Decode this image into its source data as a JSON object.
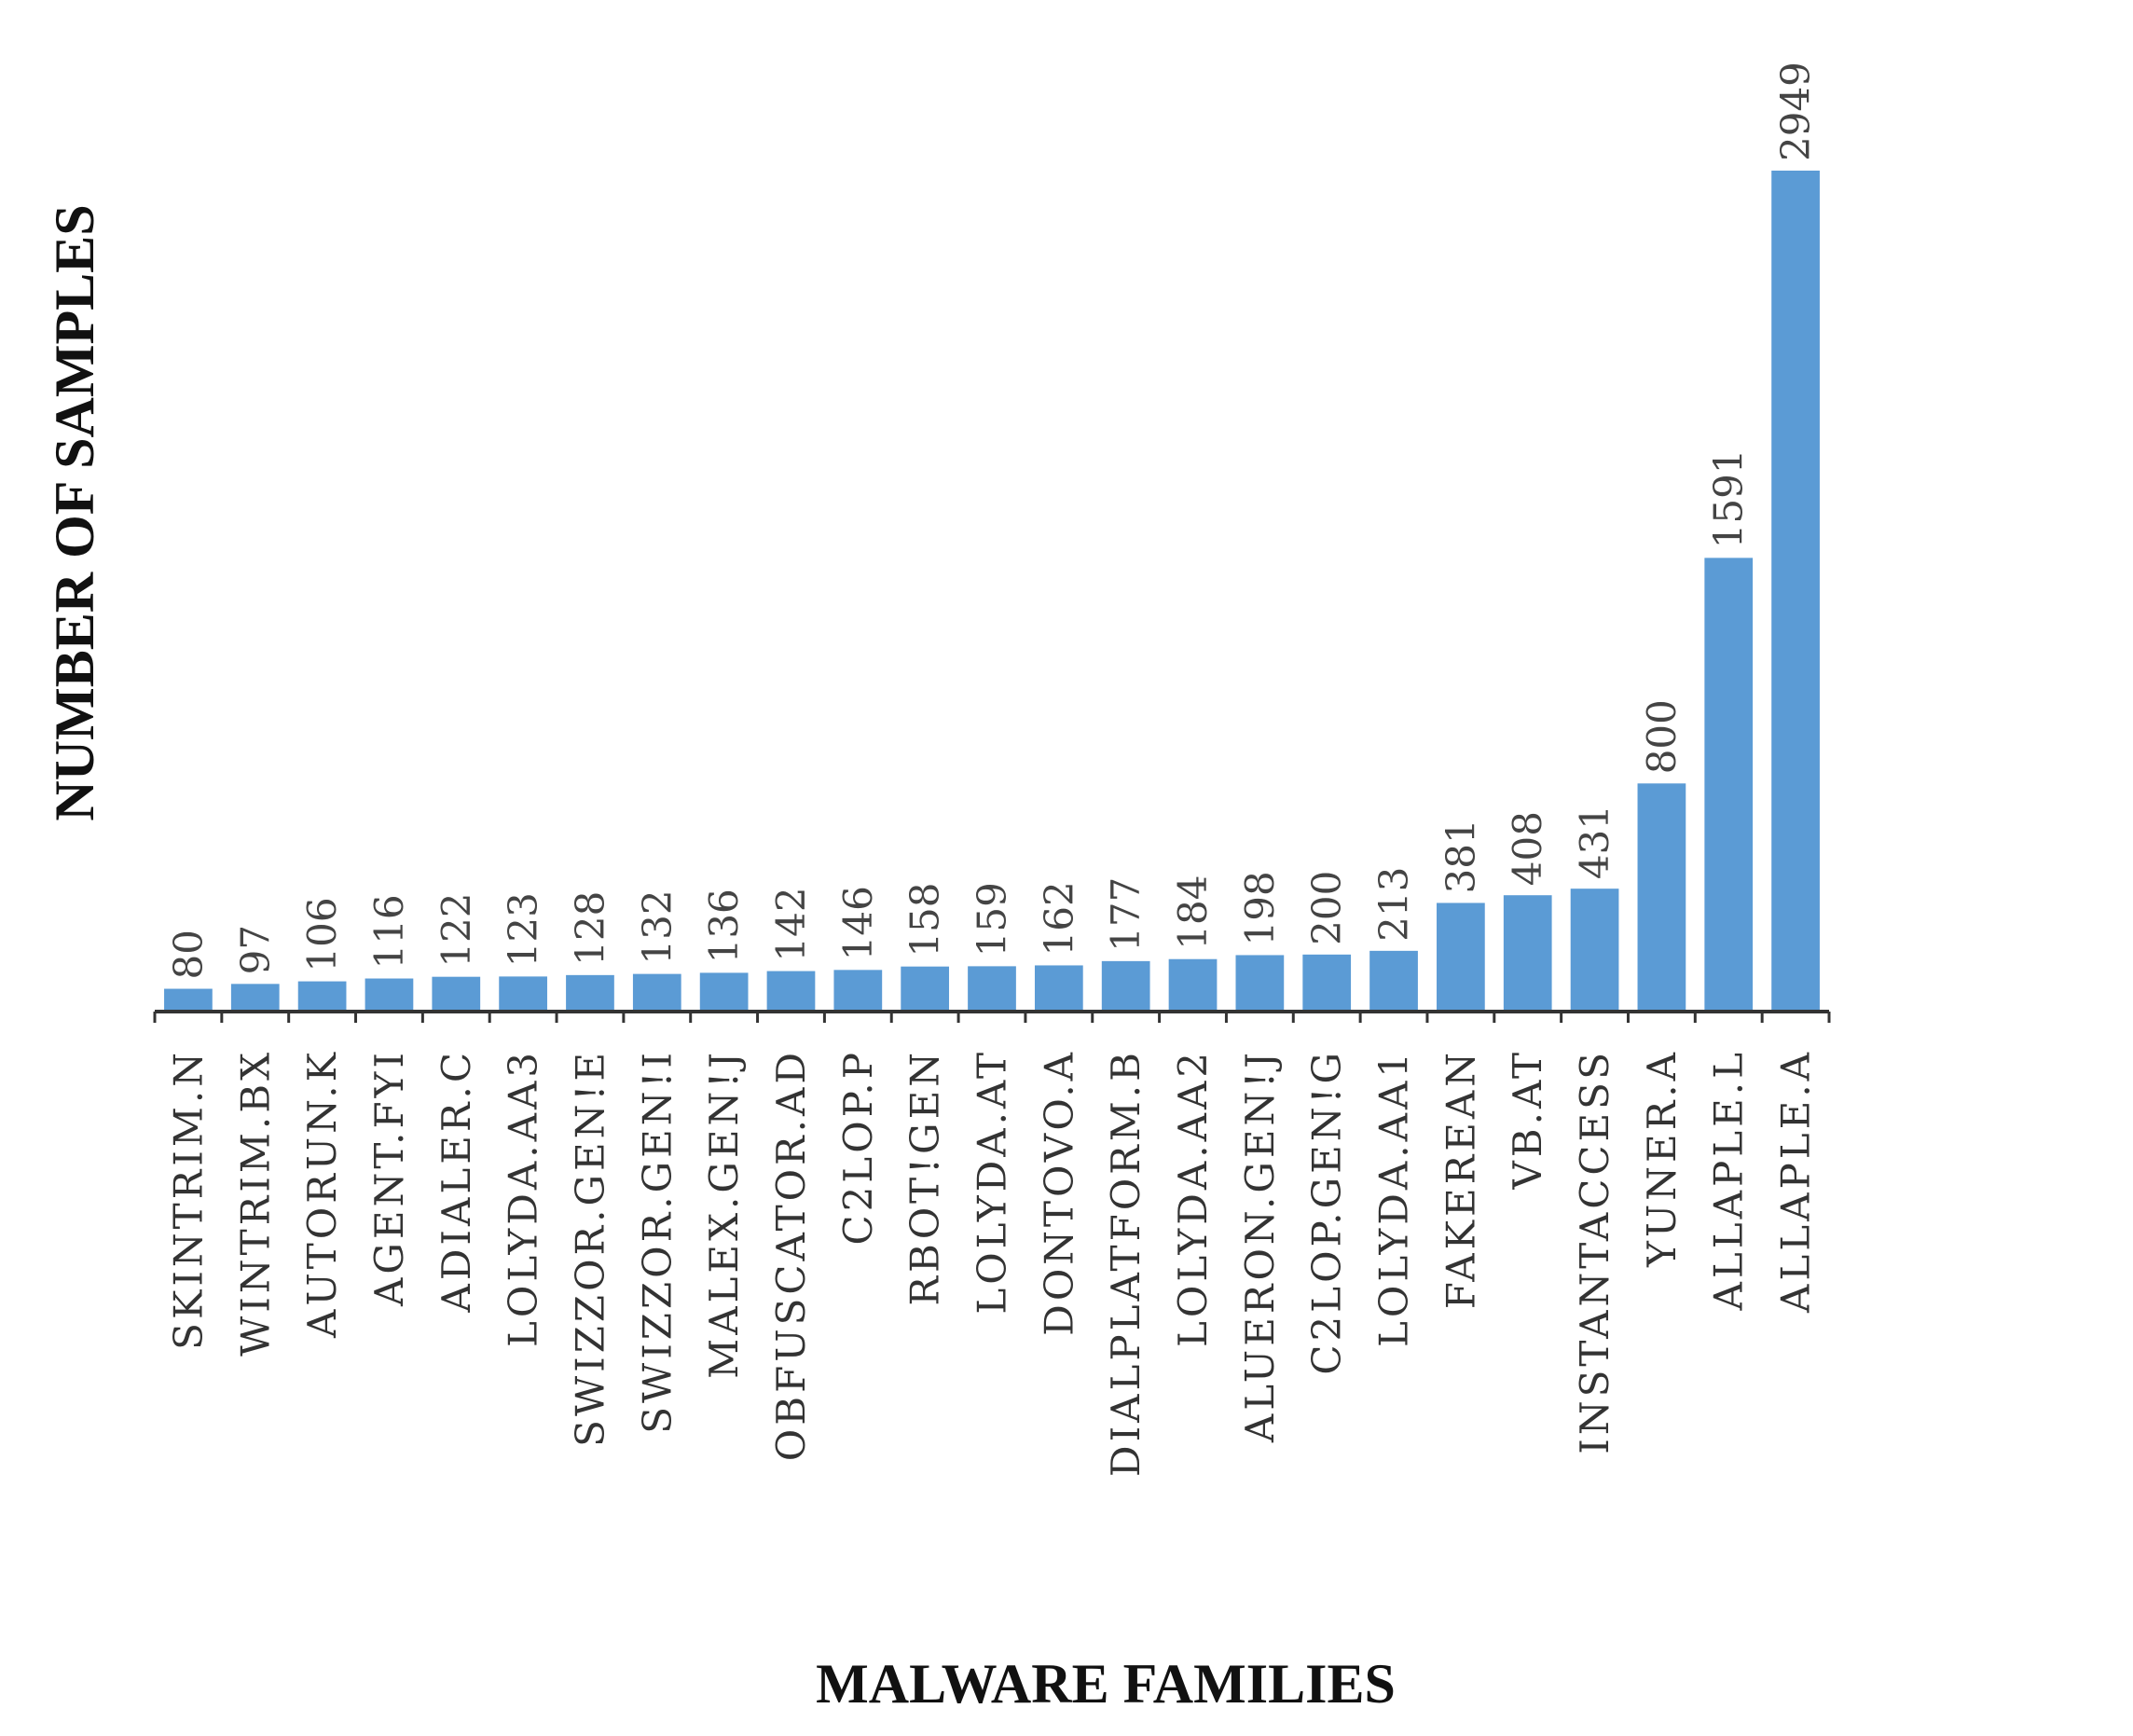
{
  "chart_data": {
    "type": "bar",
    "title": "",
    "xlabel": "MALWARE FAMILIES",
    "ylabel": "NUMBER OF SAMPLES",
    "ylim": [
      0,
      2949
    ],
    "grid": false,
    "bar_color": "#5b9bd5",
    "categories": [
      "SKINTRIM.N",
      "WINTRIM.BX",
      "AUTORUN.K",
      "AGENT.FYI",
      "ADIALER.C",
      "LOLYDA.AA3",
      "SWIZZOR.GEN!E",
      "SWIZZOR.GEN!I",
      "MALEX.GEN!J",
      "OBFUSCATOR.AD",
      "C2LOP.P",
      "RBOT!GEN",
      "LOLYDA.AT",
      "DONTOVO.A",
      "DIALPLATFORM.B",
      "LOLYDA.AA2",
      "ALUERON.GEN!J",
      "C2LOP.GEN!G",
      "LOLYDA.AA1",
      "FAKEREAN",
      "VB.AT",
      "INSTANTACCESS",
      "YUNER.A",
      "ALLAPLE.L",
      "ALLAPLE.A"
    ],
    "values": [
      80,
      97,
      106,
      116,
      122,
      123,
      128,
      132,
      136,
      142,
      146,
      158,
      159,
      162,
      177,
      184,
      198,
      200,
      213,
      381,
      408,
      431,
      800,
      1591,
      2949
    ],
    "value_labels": [
      "80",
      "97",
      "106",
      "116",
      "122",
      "123",
      "128",
      "132",
      "136",
      "142",
      "146",
      "158",
      "159",
      "162",
      "177",
      "184",
      "198",
      "200",
      "213",
      "381",
      "408",
      "431",
      "800",
      "1591",
      "2949"
    ]
  }
}
